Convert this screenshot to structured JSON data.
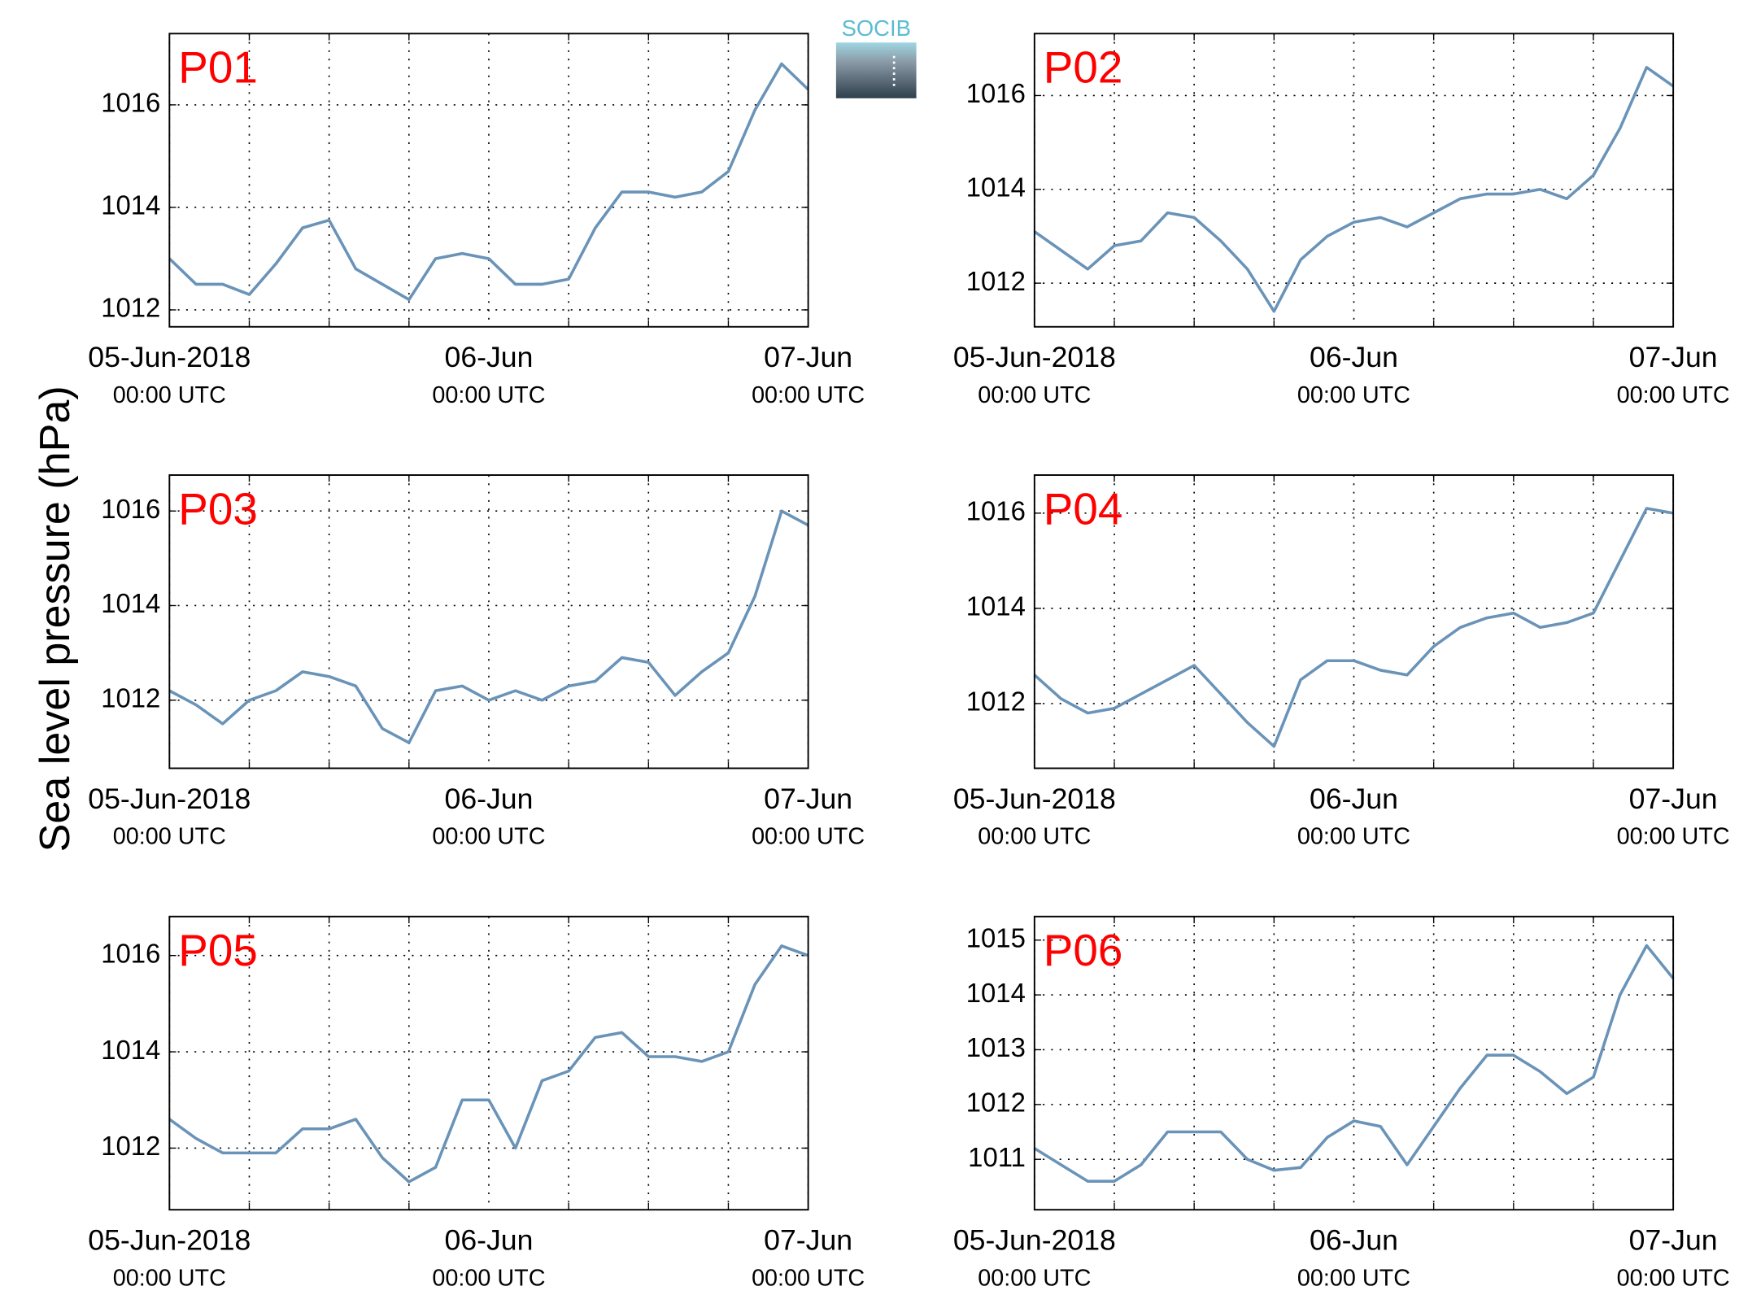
{
  "ylabel": "Sea level pressure (hPa)",
  "logo": "SOCIB",
  "chart_data": [
    {
      "type": "line",
      "title": "P01",
      "color": "#6a93b8",
      "x": [
        0,
        2,
        4,
        6,
        8,
        10,
        12,
        14,
        16,
        18,
        20,
        22,
        24,
        26,
        28,
        30,
        32,
        34,
        36,
        38,
        40,
        42,
        44,
        46,
        48
      ],
      "values": [
        1013.0,
        1012.5,
        1012.5,
        1012.3,
        1012.9,
        1013.6,
        1013.75,
        1012.8,
        1012.5,
        1012.2,
        1013.0,
        1013.1,
        1013.0,
        1012.5,
        1012.5,
        1012.6,
        1013.6,
        1014.3,
        1014.3,
        1014.2,
        1014.3,
        1014.7,
        1015.9,
        1016.8,
        1016.3
      ],
      "xlim": [
        0,
        48
      ],
      "xticks": [
        {
          "value": 0,
          "label": "05-Jun-2018",
          "sublabel": "00:00 UTC"
        },
        {
          "value": 24,
          "label": "06-Jun",
          "sublabel": "00:00 UTC"
        },
        {
          "value": 48,
          "label": "07-Jun",
          "sublabel": "00:00 UTC"
        }
      ],
      "xminorticks": [
        6,
        12,
        18,
        30,
        36,
        42
      ],
      "ylim": [
        1011.67,
        1017.39
      ],
      "yticks": [
        1012,
        1014,
        1016
      ],
      "grid": true
    },
    {
      "type": "line",
      "title": "P02",
      "color": "#6a93b8",
      "x": [
        0,
        2,
        4,
        6,
        8,
        10,
        12,
        14,
        16,
        18,
        20,
        22,
        24,
        26,
        28,
        30,
        32,
        34,
        36,
        38,
        40,
        42,
        44,
        46,
        48
      ],
      "values": [
        1013.1,
        1012.7,
        1012.3,
        1012.8,
        1012.9,
        1013.5,
        1013.4,
        1012.9,
        1012.3,
        1011.4,
        1012.5,
        1013.0,
        1013.3,
        1013.4,
        1013.2,
        1013.5,
        1013.8,
        1013.9,
        1013.9,
        1014.0,
        1013.8,
        1014.3,
        1015.3,
        1016.6,
        1016.2
      ],
      "xlim": [
        0,
        48
      ],
      "xticks": [
        {
          "value": 0,
          "label": "05-Jun-2018",
          "sublabel": "00:00 UTC"
        },
        {
          "value": 24,
          "label": "06-Jun",
          "sublabel": "00:00 UTC"
        },
        {
          "value": 48,
          "label": "07-Jun",
          "sublabel": "00:00 UTC"
        }
      ],
      "xminorticks": [
        6,
        12,
        18,
        30,
        36,
        42
      ],
      "ylim": [
        1011.07,
        1017.32
      ],
      "yticks": [
        1012,
        1014,
        1016
      ],
      "grid": true
    },
    {
      "type": "line",
      "title": "P03",
      "color": "#6a93b8",
      "x": [
        0,
        2,
        4,
        6,
        8,
        10,
        12,
        14,
        16,
        18,
        20,
        22,
        24,
        26,
        28,
        30,
        32,
        34,
        36,
        38,
        40,
        42,
        44,
        46,
        48
      ],
      "values": [
        1012.2,
        1011.9,
        1011.5,
        1012.0,
        1012.2,
        1012.6,
        1012.5,
        1012.3,
        1011.4,
        1011.1,
        1012.2,
        1012.3,
        1012.0,
        1012.2,
        1012.0,
        1012.3,
        1012.4,
        1012.9,
        1012.8,
        1012.1,
        1012.6,
        1013.0,
        1014.2,
        1016.0,
        1015.7
      ],
      "xlim": [
        0,
        48
      ],
      "xticks": [
        {
          "value": 0,
          "label": "05-Jun-2018",
          "sublabel": "00:00 UTC"
        },
        {
          "value": 24,
          "label": "06-Jun",
          "sublabel": "00:00 UTC"
        },
        {
          "value": 48,
          "label": "07-Jun",
          "sublabel": "00:00 UTC"
        }
      ],
      "xminorticks": [
        6,
        12,
        18,
        30,
        36,
        42
      ],
      "ylim": [
        1010.56,
        1016.76
      ],
      "yticks": [
        1012,
        1014,
        1016
      ],
      "grid": true
    },
    {
      "type": "line",
      "title": "P04",
      "color": "#6a93b8",
      "x": [
        0,
        2,
        4,
        6,
        8,
        10,
        12,
        14,
        16,
        18,
        20,
        22,
        24,
        26,
        28,
        30,
        32,
        34,
        36,
        38,
        40,
        42,
        44,
        46,
        48
      ],
      "values": [
        1012.6,
        1012.1,
        1011.8,
        1011.9,
        1012.2,
        1012.5,
        1012.8,
        1012.2,
        1011.6,
        1011.1,
        1012.5,
        1012.9,
        1012.9,
        1012.7,
        1012.6,
        1013.2,
        1013.6,
        1013.8,
        1013.9,
        1013.6,
        1013.7,
        1013.9,
        1015.0,
        1016.1,
        1016.0
      ],
      "xlim": [
        0,
        48
      ],
      "xticks": [
        {
          "value": 0,
          "label": "05-Jun-2018",
          "sublabel": "00:00 UTC"
        },
        {
          "value": 24,
          "label": "06-Jun",
          "sublabel": "00:00 UTC"
        },
        {
          "value": 48,
          "label": "07-Jun",
          "sublabel": "00:00 UTC"
        }
      ],
      "xminorticks": [
        6,
        12,
        18,
        30,
        36,
        42
      ],
      "ylim": [
        1010.64,
        1016.8
      ],
      "yticks": [
        1012,
        1014,
        1016
      ],
      "grid": true
    },
    {
      "type": "line",
      "title": "P05",
      "color": "#6a93b8",
      "x": [
        0,
        2,
        4,
        6,
        8,
        10,
        12,
        14,
        16,
        18,
        20,
        22,
        24,
        26,
        28,
        30,
        32,
        34,
        36,
        38,
        40,
        42,
        44,
        46,
        48
      ],
      "values": [
        1012.6,
        1012.2,
        1011.9,
        1011.9,
        1011.9,
        1012.4,
        1012.4,
        1012.6,
        1011.8,
        1011.3,
        1011.6,
        1013.0,
        1013.0,
        1012.0,
        1013.4,
        1013.6,
        1014.3,
        1014.4,
        1013.9,
        1013.9,
        1013.8,
        1014.0,
        1015.4,
        1016.2,
        1016.0
      ],
      "xlim": [
        0,
        48
      ],
      "xticks": [
        {
          "value": 0,
          "label": "05-Jun-2018",
          "sublabel": "00:00 UTC"
        },
        {
          "value": 24,
          "label": "06-Jun",
          "sublabel": "00:00 UTC"
        },
        {
          "value": 48,
          "label": "07-Jun",
          "sublabel": "00:00 UTC"
        }
      ],
      "xminorticks": [
        6,
        12,
        18,
        30,
        36,
        42
      ],
      "ylim": [
        1010.72,
        1016.81
      ],
      "yticks": [
        1012,
        1014,
        1016
      ],
      "grid": true
    },
    {
      "type": "line",
      "title": "P06",
      "color": "#6a93b8",
      "x": [
        0,
        2,
        4,
        6,
        8,
        10,
        12,
        14,
        16,
        18,
        20,
        22,
        24,
        26,
        28,
        30,
        32,
        34,
        36,
        38,
        40,
        42,
        44,
        46,
        48
      ],
      "values": [
        1011.2,
        1010.9,
        1010.6,
        1010.6,
        1010.9,
        1011.5,
        1011.5,
        1011.5,
        1011.0,
        1010.8,
        1010.85,
        1011.4,
        1011.7,
        1011.6,
        1010.9,
        1011.6,
        1012.3,
        1012.9,
        1012.9,
        1012.6,
        1012.2,
        1012.5,
        1014.0,
        1014.9,
        1014.3
      ],
      "xlim": [
        0,
        48
      ],
      "xticks": [
        {
          "value": 0,
          "label": "05-Jun-2018",
          "sublabel": "00:00 UTC"
        },
        {
          "value": 24,
          "label": "06-Jun",
          "sublabel": "00:00 UTC"
        },
        {
          "value": 48,
          "label": "07-Jun",
          "sublabel": "00:00 UTC"
        }
      ],
      "xminorticks": [
        6,
        12,
        18,
        30,
        36,
        42
      ],
      "ylim": [
        1010.08,
        1015.43
      ],
      "yticks": [
        1011,
        1012,
        1013,
        1014,
        1015
      ],
      "grid": true
    }
  ]
}
